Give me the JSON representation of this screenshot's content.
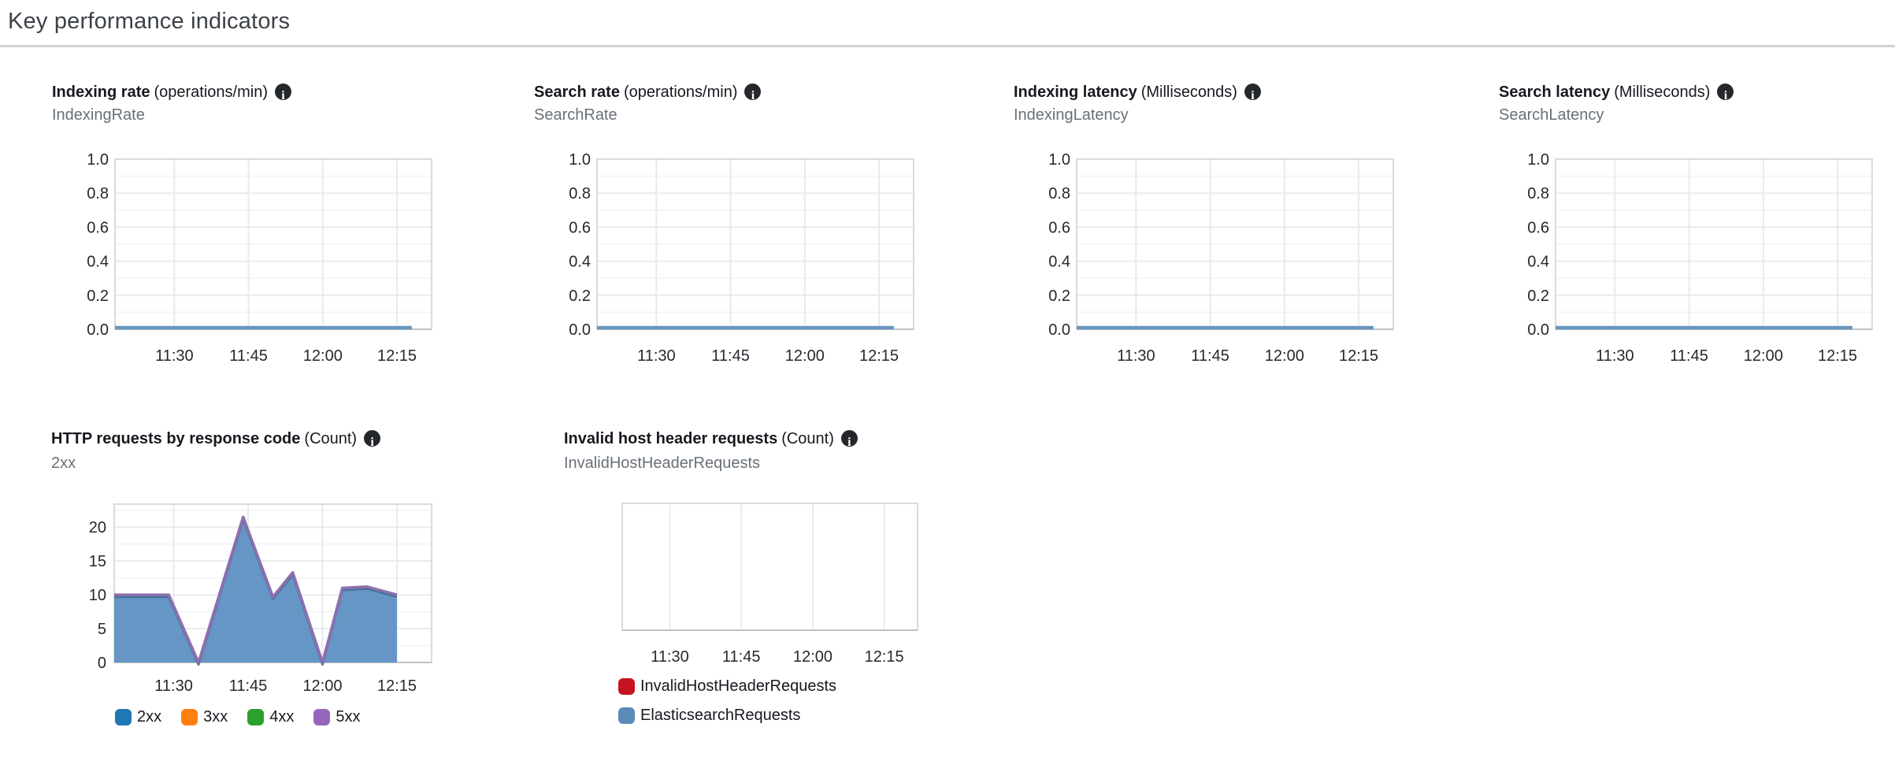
{
  "page": {
    "title": "Key performance indicators"
  },
  "colors": {
    "flat_line_blue": "#6897bf",
    "area_fill_blue": "#6596c5",
    "area_edge_dark_blue": "#48719c",
    "area_edge_purple": "#8f6fae",
    "legend_2xx_blue": "#1f77b4",
    "legend_3xx_orange": "#ff7f0e",
    "legend_4xx_green": "#2ca02c",
    "legend_5xx_purple": "#9467bd",
    "legend_red": "#c7131f",
    "legend_steel_blue": "#5b8cb8",
    "grid_major": "#e8ebed",
    "grid_minor": "#f3f5f6",
    "plot_border": "#d8dcdf",
    "axis_bottom": "#bcc3c7"
  },
  "panels": [
    {
      "title": "Indexing rate",
      "unit": "(operations/min)",
      "metric": "IndexingRate"
    },
    {
      "title": "Search rate",
      "unit": "(operations/min)",
      "metric": "SearchRate"
    },
    {
      "title": "Indexing latency",
      "unit": "(Milliseconds)",
      "metric": "IndexingLatency"
    },
    {
      "title": "Search latency",
      "unit": "(Milliseconds)",
      "metric": "SearchLatency"
    },
    {
      "title": "HTTP requests by response code",
      "unit": "(Count)",
      "metric": "2xx"
    },
    {
      "title": "Invalid host header requests",
      "unit": "(Count)",
      "metric": "InvalidHostHeaderRequests"
    }
  ],
  "chart_data": [
    {
      "id": "indexing-rate",
      "type": "line",
      "title": "Indexing rate (operations/min)",
      "metric": "IndexingRate",
      "xlim": [
        "11:18",
        "12:22"
      ],
      "x_ticks": [
        "11:30",
        "11:45",
        "12:00",
        "12:15"
      ],
      "ylim": [
        0.0,
        1.0
      ],
      "y_ticks": [
        "1.0",
        "0.8",
        "0.6",
        "0.4",
        "0.2",
        "0.0"
      ],
      "y_minor_step": 0.1,
      "grid": true,
      "legend_position": "none",
      "series": [
        {
          "name": "IndexingRate",
          "color": "#6897bf",
          "points": [
            [
              "11:18",
              0
            ],
            [
              "12:18",
              0
            ]
          ]
        }
      ]
    },
    {
      "id": "search-rate",
      "type": "line",
      "title": "Search rate (operations/min)",
      "metric": "SearchRate",
      "xlim": [
        "11:18",
        "12:22"
      ],
      "x_ticks": [
        "11:30",
        "11:45",
        "12:00",
        "12:15"
      ],
      "ylim": [
        0.0,
        1.0
      ],
      "y_ticks": [
        "1.0",
        "0.8",
        "0.6",
        "0.4",
        "0.2",
        "0.0"
      ],
      "y_minor_step": 0.1,
      "grid": true,
      "legend_position": "none",
      "series": [
        {
          "name": "SearchRate",
          "color": "#6897bf",
          "points": [
            [
              "11:18",
              0
            ],
            [
              "12:18",
              0
            ]
          ]
        }
      ]
    },
    {
      "id": "indexing-latency",
      "type": "line",
      "title": "Indexing latency (Milliseconds)",
      "metric": "IndexingLatency",
      "xlim": [
        "11:18",
        "12:22"
      ],
      "x_ticks": [
        "11:30",
        "11:45",
        "12:00",
        "12:15"
      ],
      "ylim": [
        0.0,
        1.0
      ],
      "y_ticks": [
        "1.0",
        "0.8",
        "0.6",
        "0.4",
        "0.2",
        "0.0"
      ],
      "y_minor_step": 0.1,
      "grid": true,
      "legend_position": "none",
      "series": [
        {
          "name": "IndexingLatency",
          "color": "#6897bf",
          "points": [
            [
              "11:18",
              0
            ],
            [
              "12:18",
              0
            ]
          ]
        }
      ]
    },
    {
      "id": "search-latency",
      "type": "line",
      "title": "Search latency (Milliseconds)",
      "metric": "SearchLatency",
      "xlim": [
        "11:18",
        "12:22"
      ],
      "x_ticks": [
        "11:30",
        "11:45",
        "12:00",
        "12:15"
      ],
      "ylim": [
        0.0,
        1.0
      ],
      "y_ticks": [
        "1.0",
        "0.8",
        "0.6",
        "0.4",
        "0.2",
        "0.0"
      ],
      "y_minor_step": 0.1,
      "grid": true,
      "legend_position": "none",
      "series": [
        {
          "name": "SearchLatency",
          "color": "#6897bf",
          "points": [
            [
              "11:18",
              0
            ],
            [
              "12:18",
              0
            ]
          ]
        }
      ]
    },
    {
      "id": "http-requests-by-response-code",
      "type": "area",
      "title": "HTTP requests by response code (Count)",
      "metric": "2xx",
      "xlim": [
        "11:18",
        "12:22"
      ],
      "x_ticks": [
        "11:30",
        "11:45",
        "12:00",
        "12:15"
      ],
      "ylim": [
        0,
        23.4
      ],
      "y_ticks": [
        "20",
        "15",
        "10",
        "5",
        "0"
      ],
      "y_tick_values": [
        20,
        15,
        10,
        5,
        0
      ],
      "y_minor_step": 2.5,
      "grid": true,
      "legend_position": "bottom",
      "series": [
        {
          "name": "2xx",
          "color": "#1f77b4",
          "points": [
            [
              "11:18",
              10
            ],
            [
              "11:29",
              10
            ],
            [
              "11:35",
              0
            ],
            [
              "11:44",
              21.5
            ],
            [
              "11:50",
              9.7
            ],
            [
              "11:54",
              13.3
            ],
            [
              "12:00",
              0
            ],
            [
              "12:04",
              11
            ],
            [
              "12:09",
              11.2
            ],
            [
              "12:15",
              10
            ]
          ]
        },
        {
          "name": "3xx",
          "color": "#ff7f0e",
          "points": []
        },
        {
          "name": "4xx",
          "color": "#2ca02c",
          "points": []
        },
        {
          "name": "5xx",
          "color": "#9467bd",
          "points": []
        }
      ],
      "legend": [
        {
          "label": "2xx",
          "color": "#1f77b4"
        },
        {
          "label": "3xx",
          "color": "#ff7f0e"
        },
        {
          "label": "4xx",
          "color": "#2ca02c"
        },
        {
          "label": "5xx",
          "color": "#9467bd"
        }
      ]
    },
    {
      "id": "invalid-host-header-requests",
      "type": "line",
      "title": "Invalid host header requests (Count)",
      "metric": "InvalidHostHeaderRequests",
      "xlim": [
        "11:20",
        "12:22"
      ],
      "x_ticks": [
        "11:30",
        "11:45",
        "12:00",
        "12:15"
      ],
      "ylim": null,
      "y_ticks": [],
      "grid": false,
      "legend_position": "bottom",
      "series": [
        {
          "name": "InvalidHostHeaderRequests",
          "color": "#c7131f",
          "points": []
        },
        {
          "name": "ElasticsearchRequests",
          "color": "#5b8cb8",
          "points": []
        }
      ],
      "legend": [
        {
          "label": "InvalidHostHeaderRequests",
          "color": "#c7131f"
        },
        {
          "label": "ElasticsearchRequests",
          "color": "#5b8cb8"
        }
      ]
    }
  ]
}
